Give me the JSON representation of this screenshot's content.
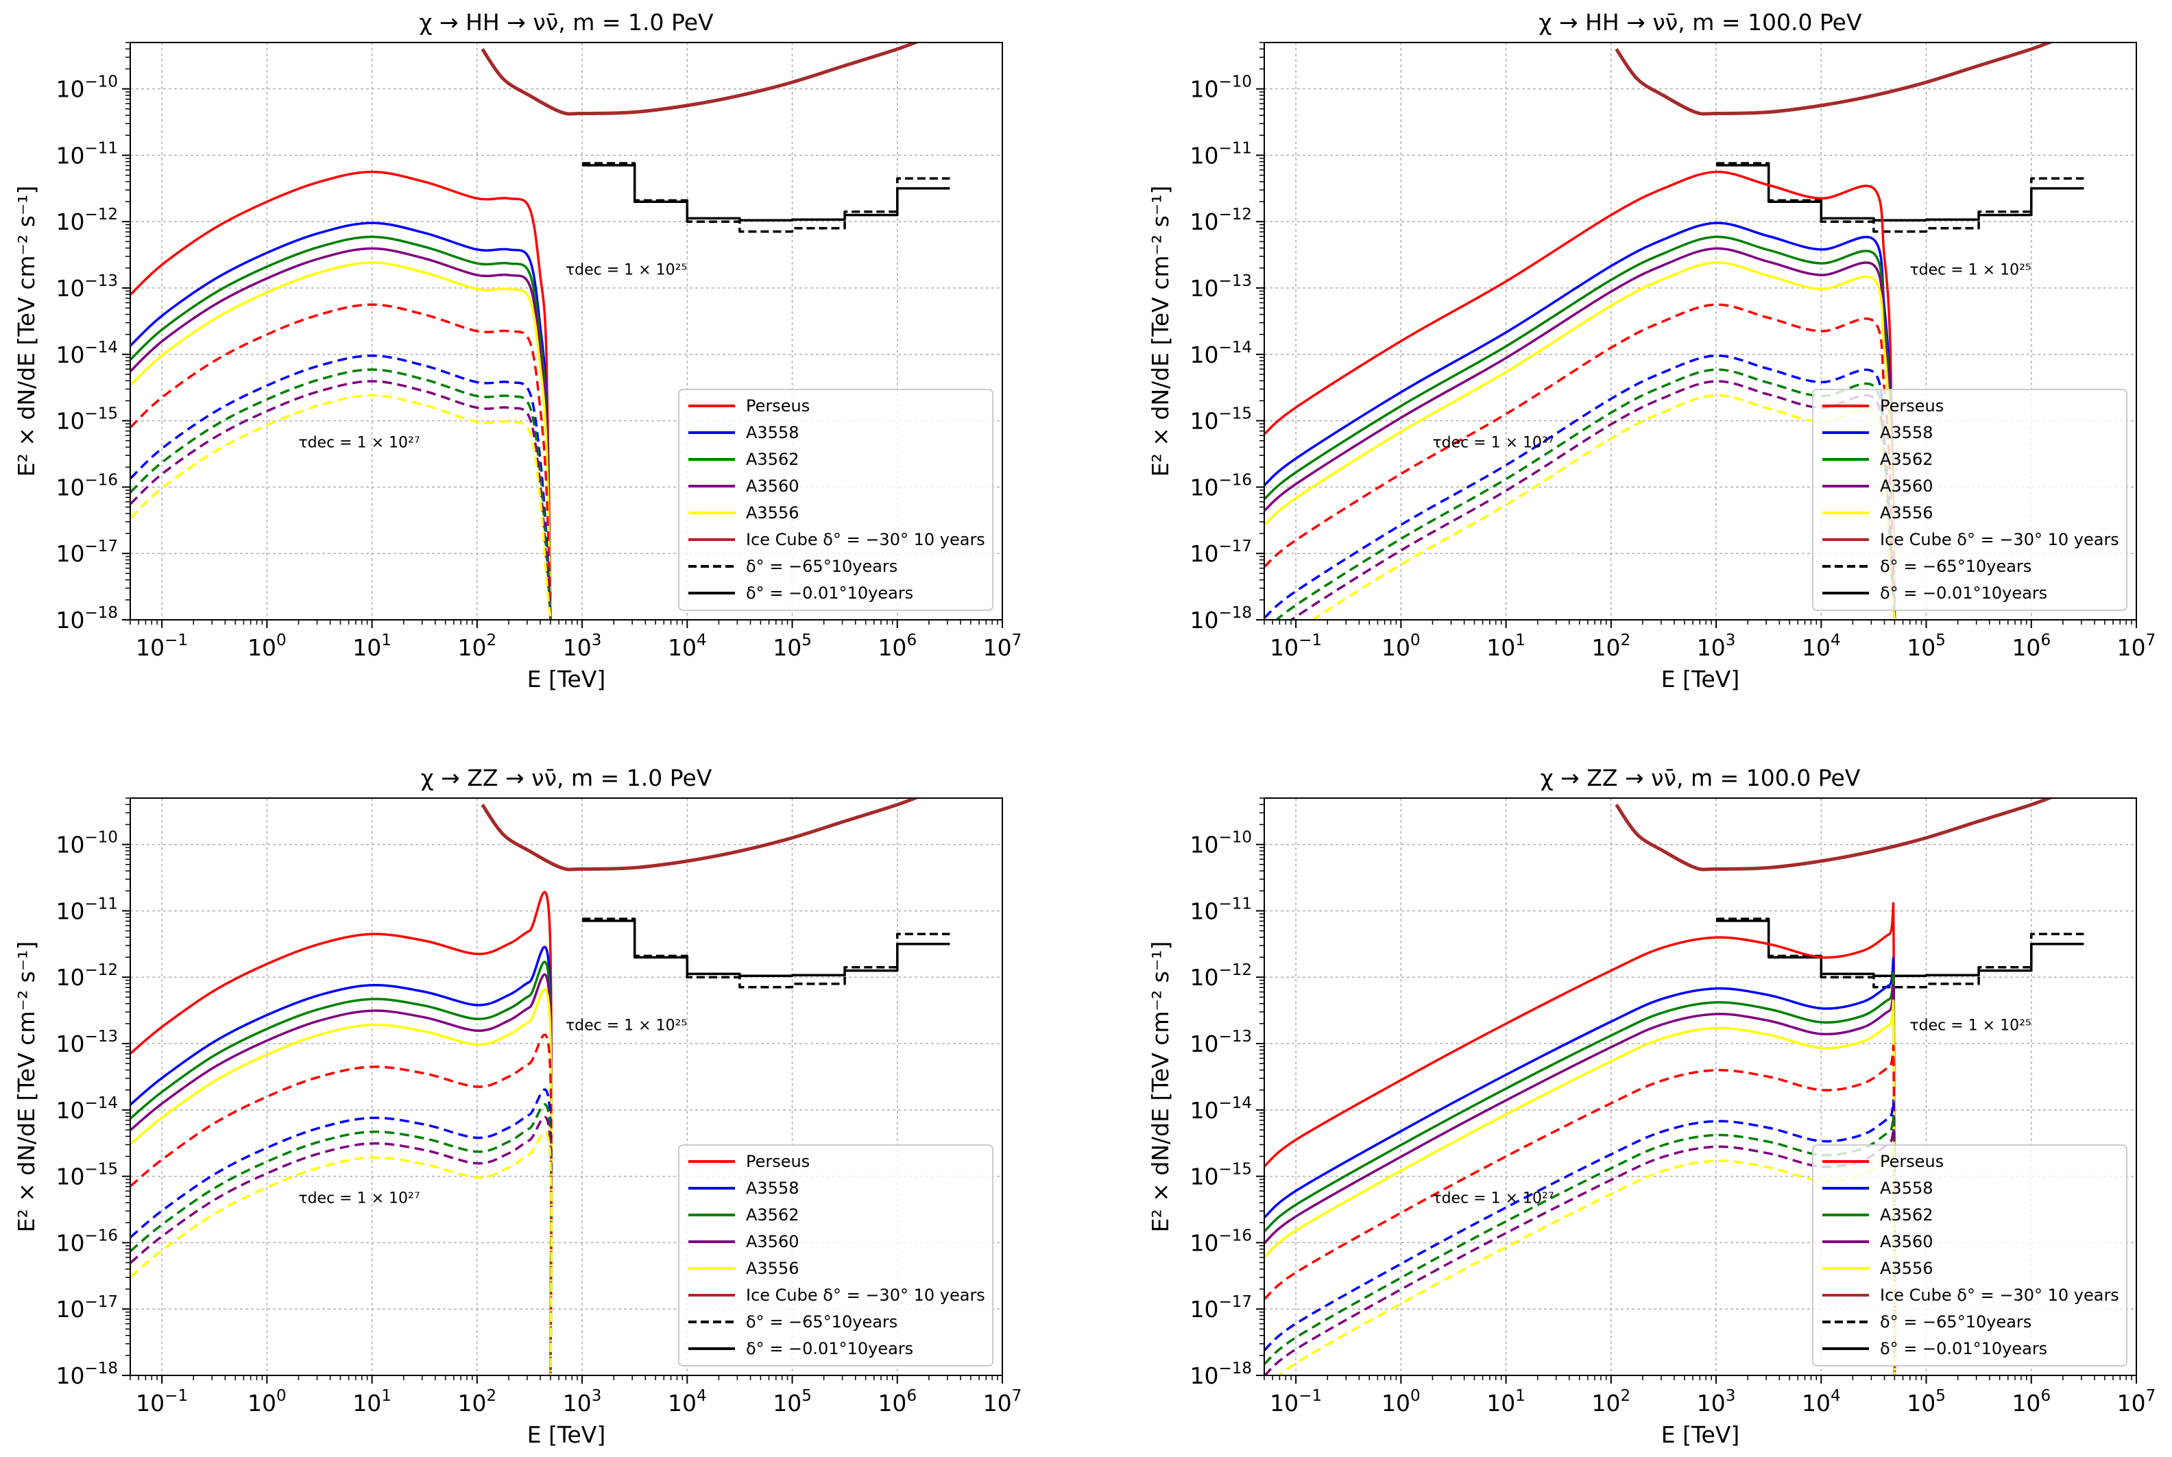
{
  "figure": {
    "xlabel": "E [TeV]",
    "ylabel": "E² × dN/dE [TeV cm⁻² s⁻¹]",
    "x_tick_labels": [
      {
        "base": "10",
        "exp": "−1"
      },
      {
        "base": "10",
        "exp": "0"
      },
      {
        "base": "10",
        "exp": "1"
      },
      {
        "base": "10",
        "exp": "2"
      },
      {
        "base": "10",
        "exp": "3"
      },
      {
        "base": "10",
        "exp": "4"
      },
      {
        "base": "10",
        "exp": "5"
      },
      {
        "base": "10",
        "exp": "6"
      },
      {
        "base": "10",
        "exp": "7"
      }
    ],
    "y_tick_labels": [
      {
        "base": "10",
        "exp": "−18"
      },
      {
        "base": "10",
        "exp": "−17"
      },
      {
        "base": "10",
        "exp": "−16"
      },
      {
        "base": "10",
        "exp": "−15"
      },
      {
        "base": "10",
        "exp": "−14"
      },
      {
        "base": "10",
        "exp": "−13"
      },
      {
        "base": "10",
        "exp": "−12"
      },
      {
        "base": "10",
        "exp": "−11"
      },
      {
        "base": "10",
        "exp": "−10"
      }
    ],
    "annotations": {
      "tau25": "τdec = 1 × 10²⁵",
      "tau27": "τdec = 1 × 10²⁷"
    },
    "legend": [
      {
        "label": "Perseus",
        "color": "#ff0000",
        "dash": "solid"
      },
      {
        "label": "A3558",
        "color": "#0000ff",
        "dash": "solid"
      },
      {
        "label": "A3562",
        "color": "#008000",
        "dash": "solid"
      },
      {
        "label": "A3560",
        "color": "#800080",
        "dash": "solid"
      },
      {
        "label": "A3556",
        "color": "#ffff00",
        "dash": "solid"
      },
      {
        "label": "Ice Cube δ° = −30° 10 years",
        "color": "#a52a2a",
        "dash": "solid"
      },
      {
        "label": "δ° = −65°10years",
        "color": "#000000",
        "dash": "dashed"
      },
      {
        "label": "δ° = −0.01°10years",
        "color": "#000000",
        "dash": "solid"
      }
    ]
  },
  "chart_data": [
    {
      "type": "line",
      "title": "χ → HH → νν̄, m = 1.0 PeV",
      "xlabel": "E [TeV]",
      "ylabel": "E² × dN/dE [TeV cm⁻² s⁻¹]",
      "xscale": "log",
      "yscale": "log",
      "xlim": [
        0.05,
        10000000
      ],
      "ylim": [
        1e-18,
        5e-10
      ],
      "grid": true,
      "legend_position": "lower-right",
      "cutoff_E": 500,
      "peak_E": 10,
      "bump_E": 300,
      "perseus_curve": {
        "logE": [
          -1.3,
          -1,
          -0.5,
          0,
          0.5,
          1,
          1.5,
          2,
          2.3,
          2.5,
          2.6,
          2.66,
          2.7
        ],
        "logF": [
          -13.1,
          -12.65,
          -12.1,
          -11.7,
          -11.4,
          -11.25,
          -11.4,
          -11.65,
          -11.65,
          -11.8,
          -12.8,
          -14.0,
          -18.0
        ]
      },
      "series": [
        {
          "name": "Perseus",
          "scale": 1.0
        },
        {
          "name": "A3558",
          "scale": 0.17
        },
        {
          "name": "A3562",
          "scale": 0.105
        },
        {
          "name": "A3560",
          "scale": 0.07
        },
        {
          "name": "A3556",
          "scale": 0.043
        }
      ],
      "dashed_scale_tau27": 0.01
    },
    {
      "type": "line",
      "title": "χ → HH → νν̄, m = 100.0 PeV",
      "xlabel": "E [TeV]",
      "ylabel": "E² × dN/dE [TeV cm⁻² s⁻¹]",
      "xscale": "log",
      "yscale": "log",
      "xlim": [
        0.05,
        10000000
      ],
      "ylim": [
        1e-18,
        5e-10
      ],
      "grid": true,
      "legend_position": "lower-right",
      "cutoff_E": 50000,
      "peak_E": 1000,
      "bump_E": 35000,
      "perseus_curve": {
        "logE": [
          -1.3,
          -1,
          0,
          1,
          2,
          2.5,
          3,
          3.5,
          4,
          4.5,
          4.6,
          4.66,
          4.7
        ],
        "logF": [
          -15.2,
          -14.8,
          -13.8,
          -12.9,
          -11.9,
          -11.5,
          -11.25,
          -11.45,
          -11.65,
          -11.5,
          -12.5,
          -14.0,
          -18.0
        ]
      },
      "series": [
        {
          "name": "Perseus",
          "scale": 1.0
        },
        {
          "name": "A3558",
          "scale": 0.17
        },
        {
          "name": "A3562",
          "scale": 0.105
        },
        {
          "name": "A3560",
          "scale": 0.07
        },
        {
          "name": "A3556",
          "scale": 0.043
        }
      ],
      "dashed_scale_tau27": 0.01
    },
    {
      "type": "line",
      "title": "χ → ZZ → νν̄, m = 1.0 PeV",
      "xlabel": "E [TeV]",
      "ylabel": "E² × dN/dE [TeV cm⁻² s⁻¹]",
      "xscale": "log",
      "yscale": "log",
      "xlim": [
        0.05,
        10000000
      ],
      "ylim": [
        1e-18,
        5e-10
      ],
      "grid": true,
      "legend_position": "lower-right",
      "cutoff_E": 500,
      "peak_E": 12,
      "bump_E": 480,
      "perseus_curve": {
        "logE": [
          -1.3,
          -1,
          -0.5,
          0,
          0.5,
          1,
          1.5,
          2,
          2.3,
          2.5,
          2.69,
          2.7
        ],
        "logF": [
          -13.15,
          -12.75,
          -12.2,
          -11.8,
          -11.5,
          -11.35,
          -11.45,
          -11.65,
          -11.5,
          -11.3,
          -11.2,
          -18.0
        ]
      },
      "series": [
        {
          "name": "Perseus",
          "scale": 1.0
        },
        {
          "name": "A3558",
          "scale": 0.17
        },
        {
          "name": "A3562",
          "scale": 0.105
        },
        {
          "name": "A3560",
          "scale": 0.07
        },
        {
          "name": "A3556",
          "scale": 0.043
        }
      ],
      "dashed_scale_tau27": 0.01
    },
    {
      "type": "line",
      "title": "χ → ZZ → νν̄, m = 100.0 PeV",
      "xlabel": "E [TeV]",
      "ylabel": "E² × dN/dE [TeV cm⁻² s⁻¹]",
      "xscale": "log",
      "yscale": "log",
      "xlim": [
        0.05,
        10000000
      ],
      "ylim": [
        1e-18,
        5e-10
      ],
      "grid": true,
      "legend_position": "lower-right",
      "cutoff_E": 50000,
      "peak_E": 1200,
      "bump_E": 48000,
      "perseus_curve": {
        "logE": [
          -1.3,
          -1,
          0,
          1,
          2,
          2.5,
          3,
          3.5,
          4,
          4.4,
          4.65,
          4.69,
          4.7
        ],
        "logF": [
          -14.85,
          -14.45,
          -13.55,
          -12.7,
          -11.9,
          -11.55,
          -11.4,
          -11.5,
          -11.7,
          -11.6,
          -11.35,
          -11.4,
          -18.0
        ]
      },
      "series": [
        {
          "name": "Perseus",
          "scale": 1.0
        },
        {
          "name": "A3558",
          "scale": 0.17
        },
        {
          "name": "A3562",
          "scale": 0.105
        },
        {
          "name": "A3560",
          "scale": 0.07
        },
        {
          "name": "A3556",
          "scale": 0.043
        }
      ],
      "dashed_scale_tau27": 0.01
    }
  ],
  "icecube_curve": {
    "logE": [
      2.05,
      2.25,
      2.5,
      2.8,
      3.0,
      3.5,
      4.0,
      4.5,
      5.0,
      5.5,
      6.0,
      6.25
    ],
    "logF": [
      -9.4,
      -9.85,
      -10.1,
      -10.35,
      -10.37,
      -10.35,
      -10.25,
      -10.1,
      -9.9,
      -9.65,
      -9.4,
      -9.25
    ]
  },
  "sensitivity_steps": {
    "solid": {
      "logE_edges": [
        3.0,
        3.5,
        4.0,
        4.5,
        5.0,
        5.5,
        6.0,
        6.5
      ],
      "logF": [
        -11.15,
        -11.7,
        -11.95,
        -11.98,
        -11.97,
        -11.9,
        -11.5
      ]
    },
    "dashed": {
      "logE_edges": [
        3.0,
        3.5,
        4.0,
        4.5,
        5.0,
        5.5,
        6.0,
        6.5
      ],
      "logF": [
        -11.12,
        -11.68,
        -12.0,
        -12.15,
        -12.1,
        -11.85,
        -11.35
      ]
    }
  }
}
